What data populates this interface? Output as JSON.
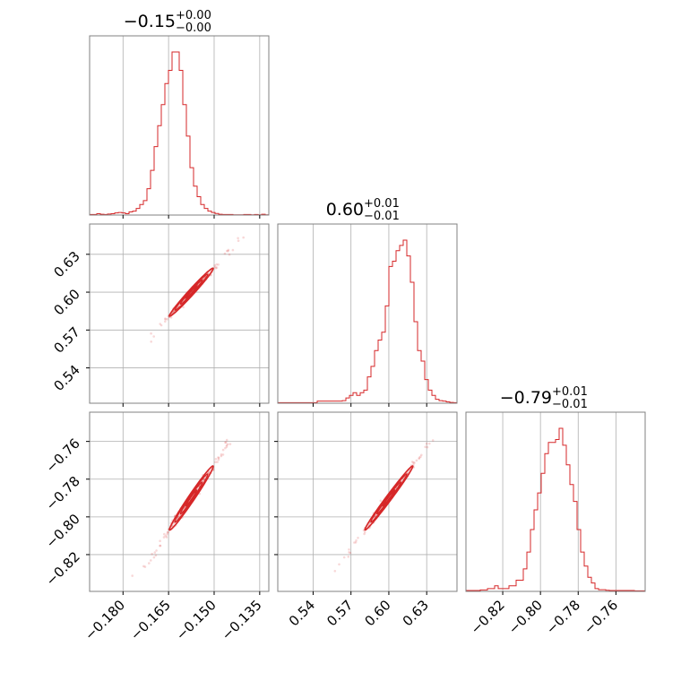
{
  "chart_data": {
    "type": "corner",
    "color": "#d62728",
    "grid": true,
    "parameters": [
      {
        "title_value": "−0.15",
        "title_plus": "+0.00",
        "title_minus": "−0.00",
        "range": [
          -0.191,
          -0.132
        ],
        "ticks": [
          {
            "value": -0.18,
            "label": "−0.180"
          },
          {
            "value": -0.165,
            "label": "−0.165"
          },
          {
            "value": -0.15,
            "label": "−0.150"
          },
          {
            "value": -0.135,
            "label": "−0.135"
          }
        ],
        "hist": {
          "start": -0.191,
          "bin_width": 0.00118,
          "counts": [
            0.2,
            0.2,
            0.5,
            0.3,
            0.2,
            0.4,
            0.5,
            0.8,
            1,
            0.8,
            0.5,
            1.2,
            1.5,
            2.5,
            4,
            5.5,
            10,
            17,
            26,
            34,
            42,
            50,
            55,
            62,
            62,
            55,
            42,
            30,
            18,
            11,
            7,
            4,
            2.5,
            1.5,
            1,
            0.6,
            0.3,
            0.2,
            0.2,
            0.2,
            0.1,
            0.1,
            0.1,
            0.2,
            0.2,
            0.1,
            0.2,
            0.1,
            0.3,
            0.1
          ]
        }
      },
      {
        "title_value": "0.60",
        "title_plus": "+0.01",
        "title_minus": "−0.01",
        "range": [
          0.512,
          0.654
        ],
        "ticks": [
          {
            "value": 0.54,
            "label": "0.54"
          },
          {
            "value": 0.57,
            "label": "0.57"
          },
          {
            "value": 0.6,
            "label": "0.60"
          },
          {
            "value": 0.63,
            "label": "0.63"
          }
        ],
        "hist": {
          "start": 0.512,
          "bin_width": 0.00284,
          "counts": [
            0.2,
            0.2,
            0.2,
            0.2,
            0.2,
            0.2,
            0.2,
            0.2,
            0.2,
            0.2,
            0.2,
            0.8,
            0.8,
            0.8,
            0.8,
            0.8,
            0.8,
            0.8,
            1,
            2,
            3,
            4,
            3,
            4,
            5,
            10,
            14,
            20,
            24,
            27,
            37,
            52,
            54,
            58,
            60,
            62,
            56,
            46,
            31,
            20,
            16,
            9,
            5,
            3,
            1.5,
            1,
            0.8,
            0.5,
            0.3,
            0.2
          ]
        }
      },
      {
        "title_value": "−0.79",
        "title_plus": "+0.01",
        "title_minus": "−0.01",
        "range": [
          -0.8395,
          -0.7445
        ],
        "ticks": [
          {
            "value": -0.82,
            "label": "−0.82"
          },
          {
            "value": -0.8,
            "label": "−0.80"
          },
          {
            "value": -0.78,
            "label": "−0.78"
          },
          {
            "value": -0.76,
            "label": "−0.76"
          }
        ],
        "hist": {
          "start": -0.8395,
          "bin_width": 0.0019,
          "counts": [
            0.3,
            0.3,
            0.3,
            0.3,
            0.5,
            0.5,
            1,
            1,
            2,
            1,
            1,
            1,
            2,
            2,
            4,
            4,
            8,
            14,
            22,
            29,
            35,
            42,
            49,
            53,
            53,
            54,
            58,
            52,
            45,
            38,
            32,
            22,
            14,
            9,
            5,
            3,
            1,
            0.6,
            0.6,
            0.4,
            0.3,
            0.3,
            0.3,
            0.3,
            0.3,
            0.3,
            0.3,
            0.2,
            0.2,
            0.2
          ]
        }
      }
    ],
    "correlations": {
      "1_0": {
        "center": [
          -0.1575,
          0.6
        ],
        "sigma": [
          0.0036,
          0.0095
        ],
        "rho": 0.985
      },
      "2_0": {
        "center": [
          -0.1575,
          -0.79
        ],
        "sigma": [
          0.0036,
          0.0085
        ],
        "rho": 0.985
      },
      "2_1": {
        "center": [
          0.6,
          -0.79
        ],
        "sigma": [
          0.0095,
          0.0085
        ],
        "rho": 0.99
      }
    }
  }
}
